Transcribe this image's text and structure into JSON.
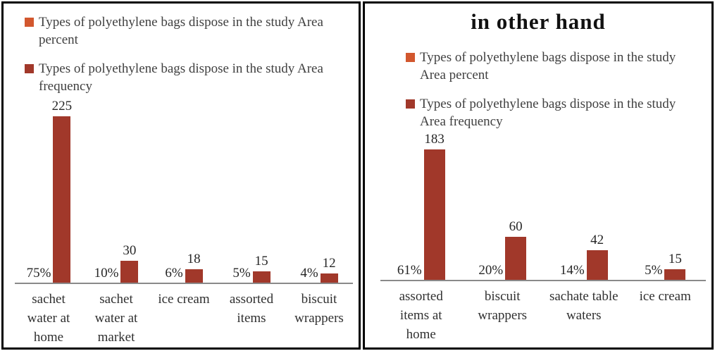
{
  "colors": {
    "percent_series": "#d2572e",
    "frequency_series": "#a1382a",
    "axis_line": "#8a8a8a",
    "legend_text": "#404040",
    "panel_border": "#000000"
  },
  "panels": [
    {
      "title": "",
      "legend": [
        {
          "series": "percent",
          "lines": [
            "Types of polyethylene bags dispose in the study Area",
            "percent"
          ]
        },
        {
          "series": "frequency",
          "lines": [
            "Types of polyethylene bags dispose in the study Area",
            "frequency"
          ]
        }
      ]
    },
    {
      "title": "in other hand",
      "legend": [
        {
          "series": "percent",
          "lines": [
            "Types of polyethylene bags dispose in the study",
            "Area percent"
          ]
        },
        {
          "series": "frequency",
          "lines": [
            "Types of polyethylene bags dispose in the study",
            "Area frequency"
          ]
        }
      ]
    }
  ],
  "chart_data": [
    {
      "type": "bar",
      "title": "",
      "categories": [
        "sachet water at home",
        "sachet water at market",
        "ice cream",
        "assorted items",
        "biscuit wrappers"
      ],
      "category_lines": [
        [
          "sachet",
          "water at",
          "home"
        ],
        [
          "sachet",
          "water at",
          "market"
        ],
        [
          "ice cream"
        ],
        [
          "assorted",
          "items"
        ],
        [
          "biscuit",
          "wrappers"
        ]
      ],
      "series": [
        {
          "name": "Types of polyethylene bags dispose in the study Area percent",
          "values": [
            75,
            10,
            6,
            5,
            4
          ],
          "unit": "%",
          "bar_visible": false,
          "labels": [
            "75%",
            "10%",
            "6%",
            "5%",
            "4%"
          ]
        },
        {
          "name": "Types of polyethylene bags dispose in the study Area frequency",
          "values": [
            225,
            30,
            18,
            15,
            12
          ],
          "bar_visible": true,
          "labels": [
            "225",
            "30",
            "18",
            "15",
            "12"
          ]
        }
      ],
      "xlabel": "",
      "ylabel": "",
      "ylim": [
        0,
        240
      ],
      "gridlines": false,
      "value_axis_visible": false,
      "legend_position": "top"
    },
    {
      "type": "bar",
      "title": "in other hand",
      "categories": [
        "assorted items at home",
        "biscuit wrappers",
        "sachate table waters",
        "ice cream"
      ],
      "category_lines": [
        [
          "assorted",
          "items at",
          "home"
        ],
        [
          "biscuit",
          "wrappers"
        ],
        [
          "sachate table",
          "waters"
        ],
        [
          "ice cream"
        ]
      ],
      "series": [
        {
          "name": "Types of polyethylene bags dispose in the study Area percent",
          "values": [
            61,
            20,
            14,
            5
          ],
          "unit": "%",
          "bar_visible": false,
          "labels": [
            "61%",
            "20%",
            "14%",
            "5%"
          ]
        },
        {
          "name": "Types of polyethylene bags dispose in the study Area frequency",
          "values": [
            183,
            60,
            42,
            15
          ],
          "bar_visible": true,
          "labels": [
            "183",
            "60",
            "42",
            "15"
          ]
        }
      ],
      "xlabel": "",
      "ylabel": "",
      "ylim": [
        0,
        200
      ],
      "gridlines": false,
      "value_axis_visible": false,
      "legend_position": "top"
    }
  ]
}
